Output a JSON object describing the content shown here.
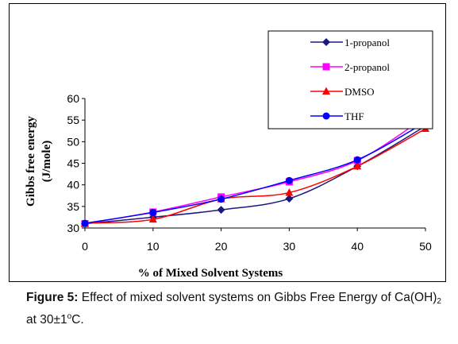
{
  "chart_data": {
    "type": "line",
    "x": [
      0,
      10,
      20,
      30,
      40,
      50
    ],
    "xlabel": "% of  Mixed Solvent Systems",
    "ylabel": [
      "Gibbs free energy",
      "(J/mole)"
    ],
    "xlim": [
      0,
      50
    ],
    "ylim": [
      30,
      60
    ],
    "xticks": [
      "0",
      "10",
      "20",
      "30",
      "40",
      "50"
    ],
    "yticks": [
      "30",
      "35",
      "40",
      "45",
      "50",
      "55",
      "60"
    ],
    "grid": false,
    "legend_position": "top-right",
    "series": [
      {
        "name": "1-propanol",
        "values": [
          31.0,
          32.5,
          34.2,
          36.8,
          44.3,
          53.6
        ],
        "color": "#1a1a7e",
        "marker": "diamond"
      },
      {
        "name": "2-propanol",
        "values": [
          31.0,
          33.7,
          37.2,
          40.7,
          45.6,
          55.7
        ],
        "color": "#ff00ff",
        "marker": "square"
      },
      {
        "name": "DMSO",
        "values": [
          31.1,
          32.0,
          36.7,
          38.2,
          44.3,
          53.0
        ],
        "color": "#ff0000",
        "marker": "triangle"
      },
      {
        "name": "THF",
        "values": [
          31.1,
          33.6,
          36.7,
          41.0,
          45.8,
          54.5
        ],
        "color": "#0000ff",
        "marker": "circle"
      }
    ]
  },
  "caption": {
    "label": "Figure 5:",
    "text_before_sub": " Effect of mixed solvent systems on Gibbs Free Energy of Ca(OH)",
    "sub": "2",
    "line2_before_sup": "at 30±1",
    "sup": "o",
    "line2_after_sup": "C."
  }
}
